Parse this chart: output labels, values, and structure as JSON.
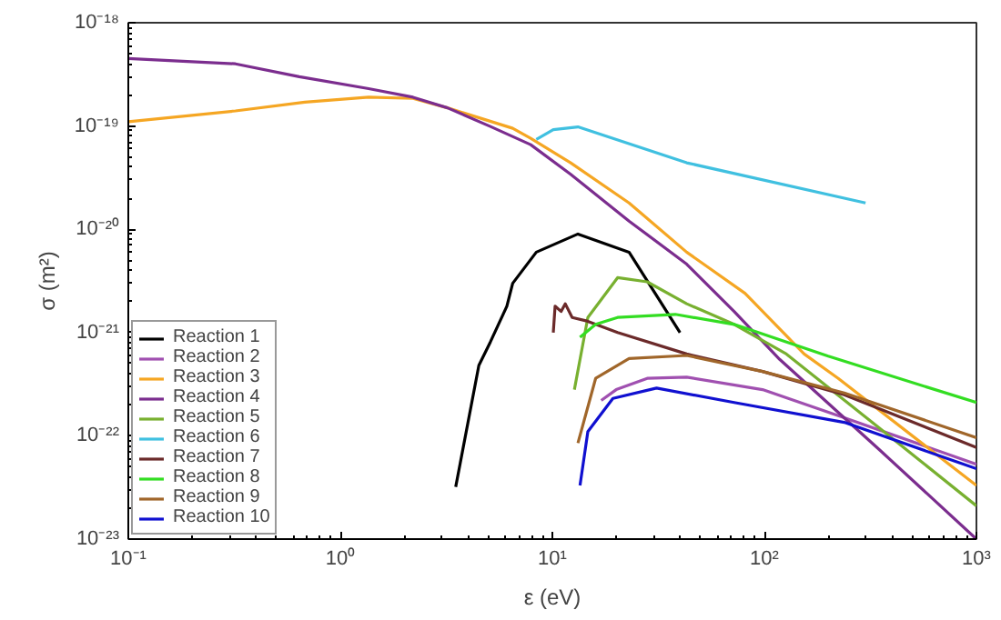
{
  "chart_data": {
    "type": "line",
    "xlabel": "ε (eV)",
    "ylabel": "σ (m²)",
    "log": "xy",
    "grid": false,
    "legend": "bottom left",
    "line_style": "solid",
    "marker": "none",
    "xlim": [
      0.1,
      1000
    ],
    "ylim": [
      1e-23,
      1e-18
    ],
    "xticks": [
      {
        "value": 0.1,
        "label": "10⁻¹"
      },
      {
        "value": 1,
        "label": "10⁰"
      },
      {
        "value": 10,
        "label": "10¹"
      },
      {
        "value": 100,
        "label": "10²"
      },
      {
        "value": 1000,
        "label": "10³"
      }
    ],
    "yticks": [
      {
        "value": 1e-23,
        "label": "10⁻²³"
      },
      {
        "value": 1e-22,
        "label": "10⁻²²"
      },
      {
        "value": 1e-21,
        "label": "10⁻²¹"
      },
      {
        "value": 1e-20,
        "label": "10⁻²⁰"
      },
      {
        "value": 1e-19,
        "label": "10⁻¹⁹"
      },
      {
        "value": 1e-18,
        "label": "10⁻¹⁸"
      }
    ],
    "series": [
      {
        "name": "Reaction 1",
        "color": "#000000",
        "x": [
          3.5,
          4.5,
          5.1,
          6.1,
          6.5,
          8.4,
          13.2,
          23,
          40
        ],
        "values": [
          3.2e-23,
          4.8e-22,
          8.1e-22,
          1.8e-21,
          3e-21,
          6e-21,
          9e-21,
          6e-21,
          1e-21
        ]
      },
      {
        "name": "Reaction 2",
        "color": "#a050b0",
        "x": [
          17,
          20,
          28,
          43,
          98,
          238,
          1000
        ],
        "values": [
          2.2e-22,
          2.8e-22,
          3.6e-22,
          3.7e-22,
          2.8e-22,
          1.5e-22,
          5.3e-23
        ]
      },
      {
        "name": "Reaction 3",
        "color": "#f5a623",
        "x": [
          0.1,
          0.32,
          0.68,
          1.36,
          2.2,
          3.2,
          6.5,
          7.9,
          12.2,
          23,
          43,
          81,
          154,
          223,
          1000
        ],
        "values": [
          1.1e-19,
          1.4e-19,
          1.7e-19,
          1.9e-19,
          1.85e-19,
          1.5e-19,
          9.5e-20,
          7.6e-20,
          4.4e-20,
          1.8e-20,
          6e-21,
          2.4e-21,
          6.2e-22,
          3.6e-22,
          3.3e-23
        ]
      },
      {
        "name": "Reaction 4",
        "color": "#7b2d8e",
        "x": [
          0.1,
          0.32,
          0.64,
          1.36,
          2.2,
          3.2,
          5.1,
          7.9,
          12.2,
          23,
          43,
          72,
          118,
          347,
          1000
        ],
        "values": [
          4.5e-19,
          4e-19,
          3e-19,
          2.3e-19,
          1.9e-19,
          1.5e-19,
          9.9e-20,
          6.6e-20,
          3.4e-20,
          1.2e-20,
          4.6e-21,
          1.6e-21,
          5.5e-22,
          7.4e-23,
          1e-23
        ]
      },
      {
        "name": "Reaction 5",
        "color": "#78b030",
        "x": [
          12.7,
          14.7,
          20.3,
          28,
          43,
          72,
          127,
          347,
          1000
        ],
        "values": [
          2.8e-22,
          1.4e-21,
          3.4e-21,
          3.1e-21,
          1.9e-21,
          1.2e-21,
          6.2e-22,
          1.2e-22,
          2.1e-23
        ]
      },
      {
        "name": "Reaction 6",
        "color": "#40c0e0",
        "x": [
          8.4,
          10.1,
          13.2,
          43,
          300
        ],
        "values": [
          7.4e-20,
          9.2e-20,
          9.8e-20,
          4.4e-20,
          1.8e-20
        ]
      },
      {
        "name": "Reaction 7",
        "color": "#6b2a2a",
        "x": [
          10.1,
          10.3,
          11,
          11.5,
          12.4,
          14.4,
          20.3,
          43,
          98,
          238,
          1000
        ],
        "values": [
          1e-21,
          1.8e-21,
          1.6e-21,
          1.9e-21,
          1.4e-21,
          1.3e-21,
          1e-21,
          6.2e-22,
          4.2e-22,
          2.5e-22,
          7.7e-23
        ]
      },
      {
        "name": "Reaction 8",
        "color": "#33dd22",
        "x": [
          13.5,
          16,
          20.3,
          38,
          72,
          200,
          1000
        ],
        "values": [
          9e-22,
          1.2e-21,
          1.4e-21,
          1.5e-21,
          1.2e-21,
          5.9e-22,
          2.1e-22
        ]
      },
      {
        "name": "Reaction 9",
        "color": "#a0662a",
        "x": [
          13.2,
          16,
          23,
          43,
          98,
          238,
          1000
        ],
        "values": [
          8.5e-23,
          3.6e-22,
          5.6e-22,
          6e-22,
          4.2e-22,
          2.6e-22,
          9.6e-23
        ]
      },
      {
        "name": "Reaction 10",
        "color": "#1010d0",
        "x": [
          13.5,
          14.7,
          19.3,
          31,
          72,
          238,
          1000
        ],
        "values": [
          3.3e-23,
          1.1e-22,
          2.3e-22,
          2.9e-22,
          2.1e-22,
          1.35e-22,
          4.8e-23
        ]
      }
    ]
  }
}
